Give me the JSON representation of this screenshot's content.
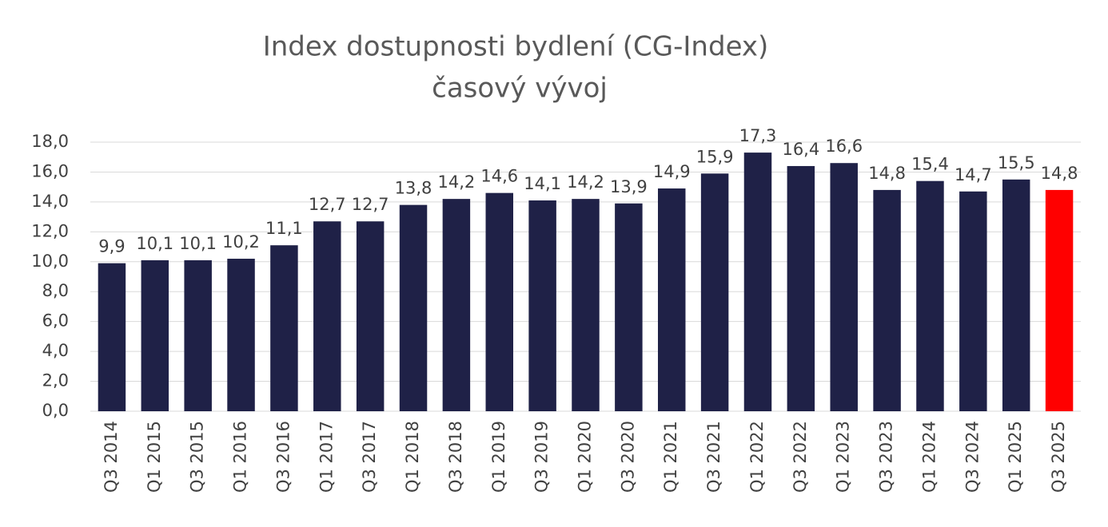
{
  "chart_data": {
    "type": "bar",
    "title": "Index dostupnosti bydlení (CG-Index)",
    "subtitle": "časový vývoj",
    "categories": [
      "Q3 2014",
      "Q1 2015",
      "Q3 2015",
      "Q1 2016",
      "Q3 2016",
      "Q1 2017",
      "Q3 2017",
      "Q1 2018",
      "Q3 2018",
      "Q1 2019",
      "Q3 2019",
      "Q1 2020",
      "Q3 2020",
      "Q1 2021",
      "Q3 2021",
      "Q1 2022",
      "Q3 2022",
      "Q1 2023",
      "Q3 2023",
      "Q1 2024",
      "Q3 2024",
      "Q1 2025",
      "Q3 2025"
    ],
    "values": [
      9.9,
      10.1,
      10.1,
      10.2,
      11.1,
      12.7,
      12.7,
      13.8,
      14.2,
      14.6,
      14.1,
      14.2,
      13.9,
      14.9,
      15.9,
      17.3,
      16.4,
      16.6,
      14.8,
      15.4,
      14.7,
      15.5,
      14.8
    ],
    "value_labels": [
      "9,9",
      "10,1",
      "10,1",
      "10,2",
      "11,1",
      "12,7",
      "12,7",
      "13,8",
      "14,2",
      "14,6",
      "14,1",
      "14,2",
      "13,9",
      "14,9",
      "15,9",
      "17,3",
      "16,4",
      "16,6",
      "14,8",
      "15,4",
      "14,7",
      "15,5",
      "14,8"
    ],
    "colors": [
      "#1f2147",
      "#1f2147",
      "#1f2147",
      "#1f2147",
      "#1f2147",
      "#1f2147",
      "#1f2147",
      "#1f2147",
      "#1f2147",
      "#1f2147",
      "#1f2147",
      "#1f2147",
      "#1f2147",
      "#1f2147",
      "#1f2147",
      "#1f2147",
      "#1f2147",
      "#1f2147",
      "#1f2147",
      "#1f2147",
      "#1f2147",
      "#1f2147",
      "#ff0000"
    ],
    "ylim": [
      0,
      18
    ],
    "yticks": [
      {
        "value": 0,
        "label": "0,0"
      },
      {
        "value": 2,
        "label": "2,0"
      },
      {
        "value": 4,
        "label": "4,0"
      },
      {
        "value": 6,
        "label": "6,0"
      },
      {
        "value": 8,
        "label": "8,0"
      },
      {
        "value": 10,
        "label": "10,0"
      },
      {
        "value": 12,
        "label": "12,0"
      },
      {
        "value": 14,
        "label": "14,0"
      },
      {
        "value": 16,
        "label": "16,0"
      },
      {
        "value": 18,
        "label": "18,0"
      }
    ],
    "grid": true
  }
}
